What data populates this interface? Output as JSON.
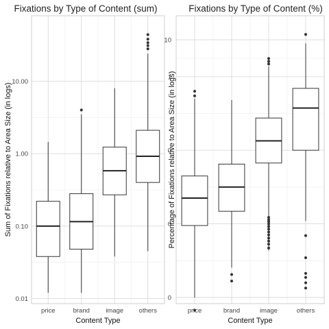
{
  "chart_data": [
    {
      "type": "boxplot",
      "title": "Fixations by Type of Content (sum)",
      "xlabel": "Content Type",
      "ylabel": "Sum of Fixations relative to Area Size (in logs)",
      "yscale": "log",
      "ylim": [
        0.0085,
        80
      ],
      "yticks": [
        0.01,
        0.1,
        1,
        10
      ],
      "ytick_labels": [
        "0.01",
        "0.10",
        "1.00",
        "10.00"
      ],
      "grid": true,
      "categories": [
        "price",
        "brand",
        "image",
        "others"
      ],
      "boxes": [
        {
          "category": "price",
          "whisker_low": 0.012,
          "q1": 0.038,
          "median": 0.1,
          "q3": 0.22,
          "whisker_high": 1.45,
          "outliers": []
        },
        {
          "category": "brand",
          "whisker_low": 0.012,
          "q1": 0.048,
          "median": 0.115,
          "q3": 0.28,
          "whisker_high": 3.5,
          "outliers": [
            4.0
          ]
        },
        {
          "category": "image",
          "whisker_low": 0.038,
          "q1": 0.27,
          "median": 0.58,
          "q3": 1.23,
          "whisker_high": 8.0,
          "outliers": []
        },
        {
          "category": "others",
          "whisker_low": 0.045,
          "q1": 0.4,
          "median": 0.92,
          "q3": 2.1,
          "whisker_high": 24,
          "outliers": [
            28,
            31,
            34,
            38,
            44
          ]
        }
      ]
    },
    {
      "type": "boxplot",
      "title": "Fixations by Type of Content (%)",
      "xlabel": "Content Type",
      "ylabel": "Percentage of Fixations relative to Area Size (in logs)",
      "yscale": "log",
      "ylim": [
        6.8e-07,
        45
      ],
      "yticks": [
        1e-06,
        0.0001,
        0.01,
        1,
        10
      ],
      "ytick_labels": [
        "0",
        "0",
        "0",
        "1",
        "10"
      ],
      "grid": true,
      "categories": [
        "price",
        "brand",
        "image",
        "others"
      ],
      "boxes": [
        {
          "category": "price",
          "whisker_low": 1e-06,
          "q1": 9e-05,
          "median": 0.0005,
          "q3": 0.002,
          "whisker_high": 0.25,
          "outliers": [
            4.5e-07,
            0.3,
            0.4
          ]
        },
        {
          "category": "brand",
          "whisker_low": 6.5e-06,
          "q1": 0.00022,
          "median": 0.001,
          "q3": 0.0042,
          "whisker_high": 0.23,
          "outliers": [
            2.8e-06,
            4.2e-06
          ]
        },
        {
          "category": "image",
          "whisker_low": 1.9e-05,
          "q1": 0.0045,
          "median": 0.018,
          "q3": 0.075,
          "whisker_high": 1.9,
          "outliers": [
            2.2e-05,
            2.8e-05,
            3.4e-05,
            4.1e-05,
            5e-05,
            6e-05,
            7.2e-05,
            8.5e-05,
            0.0001,
            0.000115,
            0.00013,
            0.00015,
            2.2,
            2.6,
            3.1
          ]
        },
        {
          "category": "others",
          "whisker_low": 0.00012,
          "q1": 0.01,
          "median": 0.14,
          "q3": 0.48,
          "whisker_high": 8.0,
          "outliers": [
            1.2e-05,
            4.5e-06,
            3.5e-06,
            2.5e-06,
            1.8e-06,
            4.8e-05,
            14
          ]
        }
      ]
    }
  ]
}
